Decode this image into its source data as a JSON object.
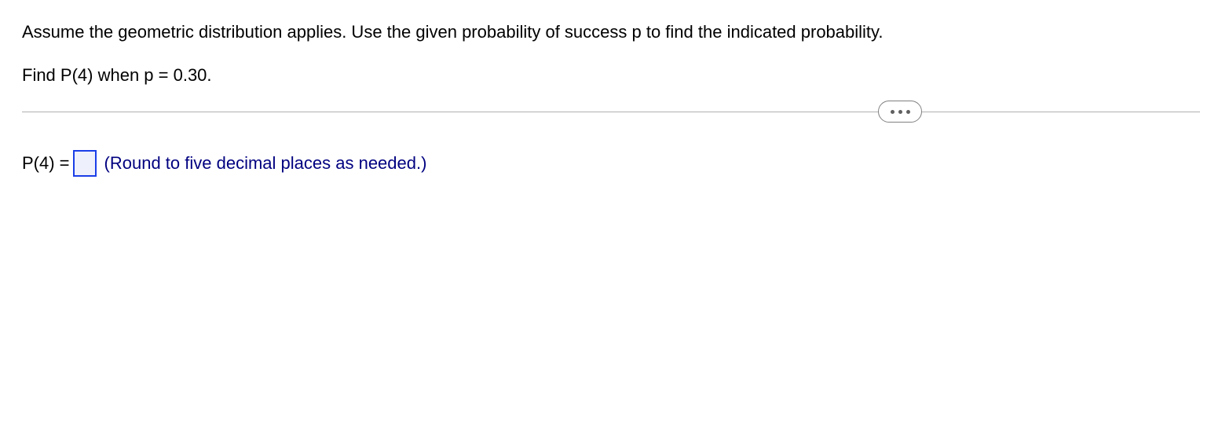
{
  "question": {
    "line1": "Assume the geometric distribution applies. Use the given probability of success p to find the indicated probability.",
    "line2": "Find P(4) when p = 0.30."
  },
  "answer": {
    "label": "P(4) =",
    "input_value": "",
    "hint": "(Round to five decimal places as needed.)"
  },
  "styling": {
    "text_color": "#000000",
    "hint_color": "#000080",
    "input_border_color": "#1a3ee8",
    "input_bg_color": "#eef0fb",
    "divider_color": "#b0b0b0",
    "font_size": 22
  }
}
